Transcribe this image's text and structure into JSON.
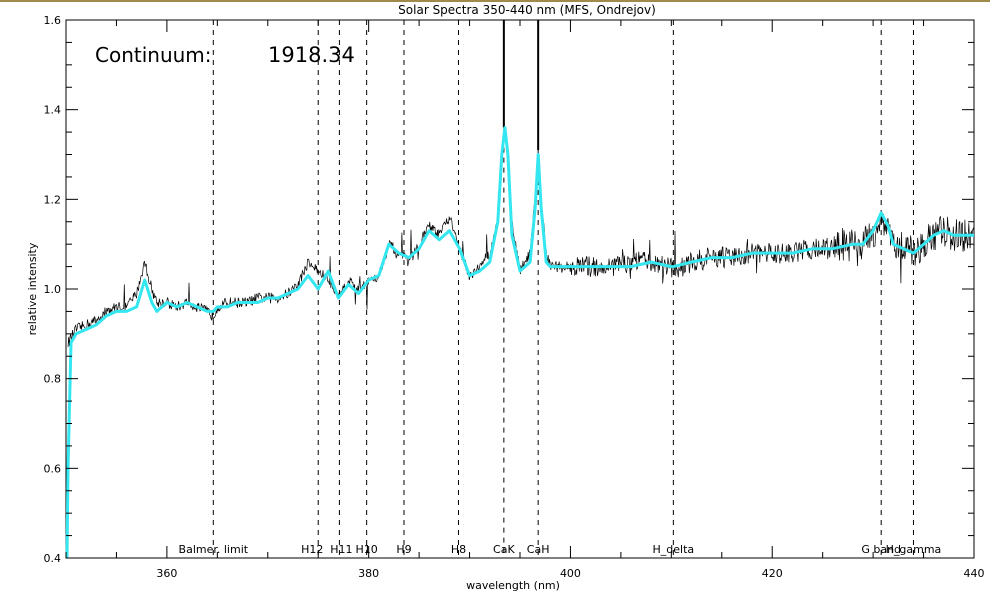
{
  "chart_data": {
    "type": "line",
    "title": "Solar Spectra 350-440 nm (MFS, Ondrejov)",
    "xlabel": "wavelength (nm)",
    "ylabel": "relative intensity",
    "xlim": [
      350,
      440
    ],
    "ylim": [
      0.4,
      1.6
    ],
    "x_ticks": [
      360,
      380,
      400,
      420,
      440
    ],
    "y_ticks": [
      0.4,
      0.6,
      0.8,
      1.0,
      1.2,
      1.4,
      1.6
    ],
    "y_tick_labels": [
      "0.4",
      "0.6",
      "0.8",
      "1.0",
      "1.2",
      "1.4",
      "1.6"
    ],
    "grid": false,
    "annotation": {
      "label": "Continuum:",
      "value": "1918.34"
    },
    "reference_lines": [
      {
        "label": "Balmer. limit",
        "x": 364.6
      },
      {
        "label": "H12",
        "x": 375.0
      },
      {
        "label": "H11",
        "x": 377.1
      },
      {
        "label": "H10",
        "x": 379.8
      },
      {
        "label": "H9",
        "x": 383.5
      },
      {
        "label": "H8",
        "x": 388.9
      },
      {
        "label": "CaK",
        "x": 393.4
      },
      {
        "label": "CaH",
        "x": 396.8
      },
      {
        "label": "H_delta",
        "x": 410.2
      },
      {
        "label": "G band",
        "x": 430.8
      },
      {
        "label": "H_gamma",
        "x": 434.0
      }
    ],
    "series": [
      {
        "color": "#000000",
        "style": "noisy-raw",
        "x": [
          350.2,
          351,
          352,
          353,
          354,
          355,
          356,
          357,
          357.8,
          358.5,
          359,
          360,
          361,
          362,
          363,
          364,
          364.6,
          365,
          366,
          367,
          368,
          369,
          370,
          371,
          372,
          373,
          374,
          375,
          376,
          377,
          378,
          379,
          380,
          381,
          382,
          383,
          384,
          385,
          386,
          387,
          388,
          389,
          390,
          391,
          392,
          392.8,
          393.2,
          393.5,
          393.8,
          394.2,
          395,
          396,
          396.5,
          396.8,
          397.1,
          397.6,
          398,
          399,
          400,
          402,
          404,
          406,
          408,
          410,
          410.2,
          412,
          414,
          416,
          418,
          420,
          422,
          424,
          426,
          428,
          429,
          430,
          430.8,
          431.5,
          432,
          433,
          434,
          435,
          436,
          437,
          438,
          439,
          440
        ],
        "y": [
          0.88,
          0.91,
          0.92,
          0.93,
          0.95,
          0.96,
          0.96,
          0.99,
          1.06,
          1.0,
          0.97,
          0.97,
          0.96,
          0.97,
          0.96,
          0.95,
          0.94,
          0.96,
          0.97,
          0.97,
          0.97,
          0.98,
          0.98,
          0.98,
          0.99,
          1.01,
          1.06,
          1.04,
          1.02,
          0.99,
          1.02,
          1.0,
          1.02,
          1.03,
          1.1,
          1.08,
          1.06,
          1.1,
          1.14,
          1.12,
          1.16,
          1.09,
          1.03,
          1.05,
          1.08,
          1.15,
          1.3,
          1.36,
          1.3,
          1.15,
          1.04,
          1.08,
          1.2,
          1.31,
          1.2,
          1.08,
          1.05,
          1.05,
          1.05,
          1.05,
          1.05,
          1.06,
          1.06,
          1.05,
          1.04,
          1.06,
          1.07,
          1.07,
          1.08,
          1.08,
          1.08,
          1.09,
          1.09,
          1.1,
          1.1,
          1.12,
          1.16,
          1.13,
          1.1,
          1.1,
          1.08,
          1.1,
          1.12,
          1.13,
          1.12,
          1.12,
          1.12
        ]
      },
      {
        "color": "#33e6f0",
        "style": "smoothed",
        "x": [
          350.1,
          350.2,
          350.5,
          351,
          352,
          353,
          354,
          355,
          356,
          357,
          357.8,
          358.5,
          359,
          360,
          361,
          362,
          363,
          364,
          364.6,
          365,
          366,
          367,
          368,
          369,
          370,
          371,
          372,
          373,
          374,
          375,
          376,
          377,
          378,
          379,
          380,
          381,
          382,
          383,
          384,
          385,
          386,
          387,
          388,
          389,
          390,
          391,
          392,
          392.8,
          393.2,
          393.5,
          393.8,
          394.2,
          395,
          396,
          396.5,
          396.8,
          397.1,
          397.6,
          398,
          399,
          400,
          402,
          404,
          406,
          408,
          410,
          410.2,
          412,
          414,
          416,
          418,
          420,
          422,
          424,
          426,
          428,
          429,
          430,
          430.8,
          431.5,
          432,
          433,
          434,
          435,
          436,
          437,
          438,
          439,
          440
        ],
        "y": [
          0.4,
          0.6,
          0.88,
          0.9,
          0.91,
          0.92,
          0.94,
          0.95,
          0.95,
          0.96,
          1.02,
          0.97,
          0.95,
          0.97,
          0.96,
          0.97,
          0.96,
          0.95,
          0.95,
          0.96,
          0.96,
          0.97,
          0.97,
          0.97,
          0.98,
          0.98,
          0.99,
          1.0,
          1.03,
          1.0,
          1.04,
          0.98,
          1.01,
          0.99,
          1.02,
          1.03,
          1.1,
          1.08,
          1.07,
          1.09,
          1.13,
          1.11,
          1.13,
          1.09,
          1.03,
          1.04,
          1.06,
          1.15,
          1.3,
          1.36,
          1.3,
          1.12,
          1.04,
          1.06,
          1.18,
          1.3,
          1.18,
          1.06,
          1.05,
          1.05,
          1.05,
          1.05,
          1.05,
          1.05,
          1.06,
          1.05,
          1.05,
          1.06,
          1.07,
          1.07,
          1.08,
          1.08,
          1.08,
          1.09,
          1.09,
          1.1,
          1.1,
          1.13,
          1.17,
          1.14,
          1.1,
          1.09,
          1.08,
          1.1,
          1.12,
          1.13,
          1.12,
          1.12,
          1.12
        ]
      }
    ]
  }
}
